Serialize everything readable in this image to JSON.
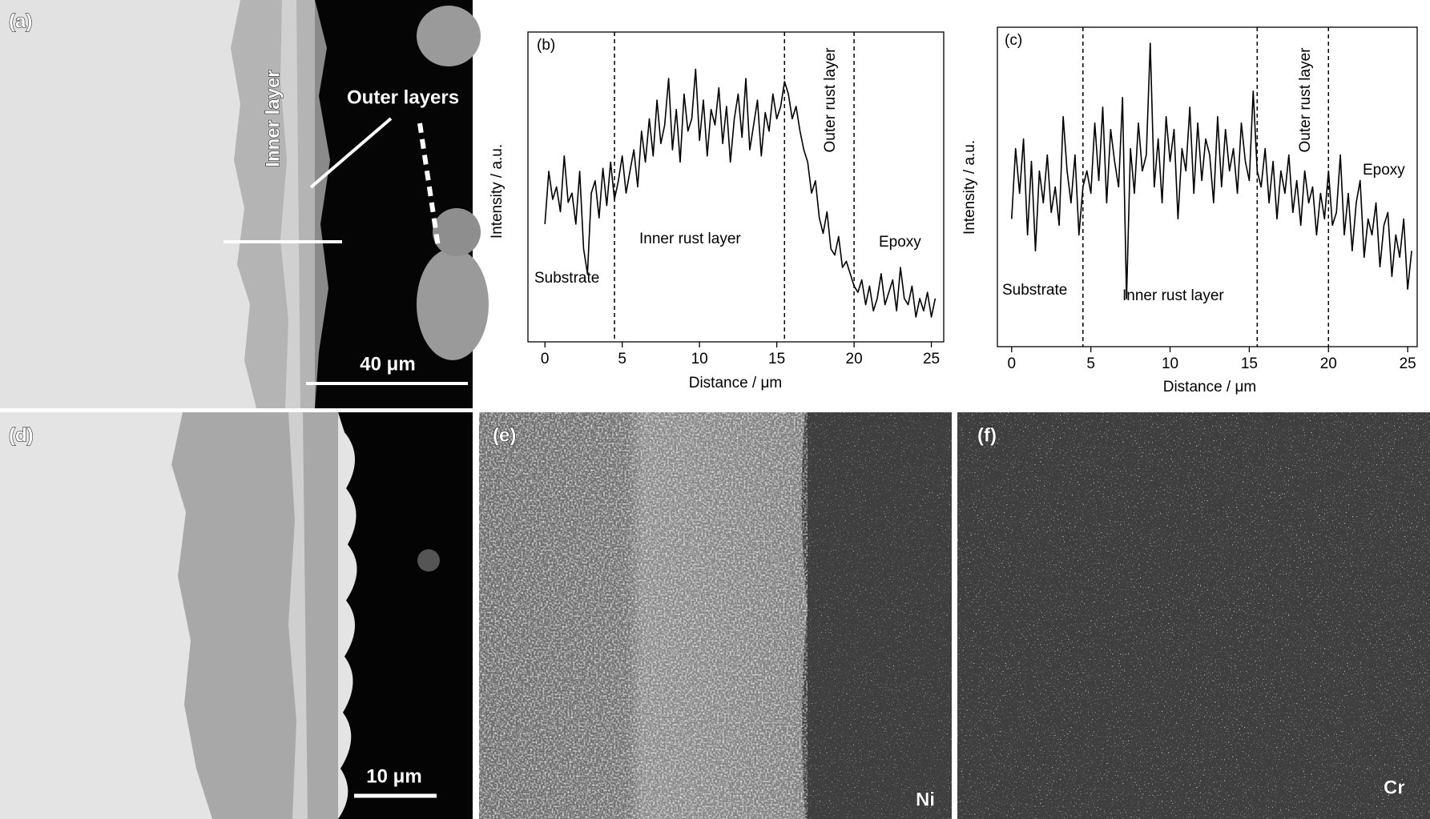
{
  "panels": {
    "a": {
      "label": "(a)",
      "inner": "Inner layer",
      "outer": "Outer layers",
      "scale": "40 μm"
    },
    "d": {
      "label": "(d)",
      "scale": "10 μm"
    },
    "e": {
      "label": "(e)",
      "element": "Ni"
    },
    "f": {
      "label": "(f)",
      "element": "Cr"
    }
  },
  "chart_data": [
    {
      "type": "line",
      "label": "(b)",
      "xlabel": "Distance / μm",
      "ylabel": "Intensity / a.u.",
      "annotations": [
        "Substrate",
        "Inner rust layer",
        "Outer rust layer",
        "Epoxy"
      ],
      "vlines": [
        4.5,
        15.5,
        20
      ],
      "xlim": [
        -1.1,
        25.8
      ],
      "xticks": [
        0,
        5,
        10,
        15,
        20,
        25
      ],
      "ylim": [
        0,
        100
      ],
      "color": "#000000",
      "x": [
        0,
        0.25,
        0.5,
        0.75,
        1,
        1.25,
        1.5,
        1.75,
        2,
        2.25,
        2.5,
        2.75,
        3,
        3.25,
        3.5,
        3.75,
        4,
        4.25,
        4.5,
        4.75,
        5,
        5.25,
        5.5,
        5.75,
        6,
        6.25,
        6.5,
        6.75,
        7,
        7.25,
        7.5,
        7.75,
        8,
        8.25,
        8.5,
        8.75,
        9,
        9.25,
        9.5,
        9.75,
        10,
        10.25,
        10.5,
        10.75,
        11,
        11.25,
        11.5,
        11.75,
        12,
        12.25,
        12.5,
        12.75,
        13,
        13.25,
        13.5,
        13.75,
        14,
        14.25,
        14.5,
        14.75,
        15,
        15.25,
        15.5,
        15.75,
        16,
        16.25,
        16.5,
        16.75,
        17,
        17.25,
        17.5,
        17.75,
        18,
        18.25,
        18.5,
        18.75,
        19,
        19.25,
        19.5,
        19.75,
        20,
        20.25,
        20.5,
        20.75,
        21,
        21.25,
        21.5,
        21.75,
        22,
        22.25,
        22.5,
        22.75,
        23,
        23.25,
        23.5,
        23.75,
        24,
        24.25,
        24.5,
        24.75,
        25,
        25.25
      ],
      "values": [
        38,
        55,
        46,
        50,
        42,
        60,
        45,
        48,
        38,
        55,
        30,
        22,
        48,
        52,
        40,
        56,
        44,
        58,
        46,
        52,
        60,
        48,
        55,
        62,
        50,
        68,
        58,
        72,
        60,
        78,
        64,
        70,
        85,
        62,
        75,
        58,
        80,
        68,
        72,
        88,
        65,
        78,
        60,
        75,
        70,
        82,
        64,
        76,
        58,
        72,
        80,
        66,
        85,
        62,
        70,
        78,
        60,
        74,
        68,
        80,
        72,
        76,
        84,
        80,
        72,
        76,
        68,
        62,
        58,
        48,
        52,
        40,
        35,
        42,
        30,
        28,
        34,
        24,
        26,
        22,
        18,
        16,
        20,
        12,
        18,
        10,
        14,
        22,
        12,
        16,
        20,
        10,
        24,
        14,
        12,
        18,
        8,
        14,
        10,
        16,
        8,
        14
      ]
    },
    {
      "type": "line",
      "label": "(c)",
      "xlabel": "Distance / μm",
      "ylabel": "Intensity / a.u.",
      "annotations": [
        "Substrate",
        "Inner rust layer",
        "Outer rust layer",
        "Epoxy"
      ],
      "vlines": [
        4.5,
        15.5,
        20
      ],
      "xlim": [
        -0.9,
        25.6
      ],
      "xticks": [
        0,
        5,
        10,
        15,
        20,
        25
      ],
      "ylim": [
        0,
        100
      ],
      "color": "#000000",
      "x": [
        0,
        0.25,
        0.5,
        0.75,
        1,
        1.25,
        1.5,
        1.75,
        2,
        2.25,
        2.5,
        2.75,
        3,
        3.25,
        3.5,
        3.75,
        4,
        4.25,
        4.5,
        4.75,
        5,
        5.25,
        5.5,
        5.75,
        6,
        6.25,
        6.5,
        6.75,
        7,
        7.25,
        7.5,
        7.75,
        8,
        8.25,
        8.5,
        8.75,
        9,
        9.25,
        9.5,
        9.75,
        10,
        10.25,
        10.5,
        10.75,
        11,
        11.25,
        11.5,
        11.75,
        12,
        12.25,
        12.5,
        12.75,
        13,
        13.25,
        13.5,
        13.75,
        14,
        14.25,
        14.5,
        14.75,
        15,
        15.25,
        15.5,
        15.75,
        16,
        16.25,
        16.5,
        16.75,
        17,
        17.25,
        17.5,
        17.75,
        18,
        18.25,
        18.5,
        18.75,
        19,
        19.25,
        19.5,
        19.75,
        20,
        20.25,
        20.5,
        20.75,
        21,
        21.25,
        21.5,
        21.75,
        22,
        22.25,
        22.5,
        22.75,
        23,
        23.25,
        23.5,
        23.75,
        24,
        24.25,
        24.5,
        24.75,
        25,
        25.25
      ],
      "values": [
        40,
        62,
        48,
        65,
        35,
        58,
        30,
        55,
        45,
        60,
        42,
        50,
        38,
        72,
        55,
        45,
        60,
        35,
        50,
        55,
        48,
        70,
        52,
        75,
        45,
        68,
        58,
        50,
        78,
        15,
        62,
        48,
        70,
        55,
        60,
        95,
        50,
        65,
        45,
        72,
        58,
        68,
        40,
        62,
        55,
        75,
        48,
        70,
        52,
        65,
        60,
        45,
        72,
        50,
        68,
        55,
        62,
        48,
        70,
        58,
        52,
        80,
        55,
        50,
        62,
        45,
        58,
        40,
        55,
        48,
        60,
        42,
        52,
        38,
        55,
        45,
        50,
        35,
        48,
        40,
        55,
        38,
        42,
        60,
        35,
        48,
        30,
        45,
        52,
        28,
        40,
        35,
        45,
        25,
        38,
        42,
        22,
        35,
        28,
        40,
        18,
        30
      ]
    }
  ]
}
